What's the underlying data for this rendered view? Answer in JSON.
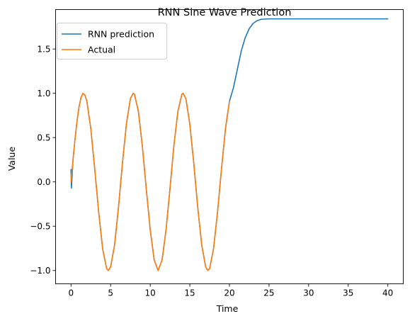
{
  "chart_data": {
    "type": "line",
    "title": "RNN Sine Wave Prediction",
    "xlabel": "Time",
    "ylabel": "Value",
    "xlim": [
      -1.95,
      41.95
    ],
    "ylim": [
      -1.15,
      1.945
    ],
    "xticks": [
      0,
      5,
      10,
      15,
      20,
      25,
      30,
      35,
      40
    ],
    "yticks": [
      -1.0,
      -0.5,
      0.0,
      0.5,
      1.0,
      1.5
    ],
    "ytick_labels": [
      "−1.0",
      "−0.5",
      "0.0",
      "0.5",
      "1.0",
      "1.5"
    ],
    "grid": false,
    "legend_position": "top-left",
    "series": [
      {
        "name": "RNN prediction",
        "color": "#1f77b4",
        "points": [
          [
            0.0,
            0.14
          ],
          [
            0.05,
            -0.07
          ],
          [
            0.25,
            0.25
          ],
          [
            0.5,
            0.48
          ],
          [
            0.75,
            0.68
          ],
          [
            1.0,
            0.84
          ],
          [
            1.25,
            0.95
          ],
          [
            1.5,
            1.0
          ],
          [
            1.75,
            0.98
          ],
          [
            2.0,
            0.91
          ],
          [
            2.5,
            0.6
          ],
          [
            3.0,
            0.14
          ],
          [
            3.5,
            -0.35
          ],
          [
            4.0,
            -0.76
          ],
          [
            4.5,
            -0.98
          ],
          [
            4.71,
            -1.0
          ],
          [
            5.0,
            -0.96
          ],
          [
            5.5,
            -0.71
          ],
          [
            6.0,
            -0.28
          ],
          [
            6.5,
            0.22
          ],
          [
            7.0,
            0.66
          ],
          [
            7.5,
            0.94
          ],
          [
            7.85,
            1.0
          ],
          [
            8.0,
            0.99
          ],
          [
            8.5,
            0.8
          ],
          [
            9.0,
            0.41
          ],
          [
            9.5,
            -0.08
          ],
          [
            10.0,
            -0.54
          ],
          [
            10.5,
            -0.88
          ],
          [
            11.0,
            -1.0
          ],
          [
            11.5,
            -0.88
          ],
          [
            12.0,
            -0.54
          ],
          [
            12.5,
            -0.07
          ],
          [
            13.0,
            0.42
          ],
          [
            13.5,
            0.8
          ],
          [
            14.0,
            0.99
          ],
          [
            14.14,
            1.0
          ],
          [
            14.5,
            0.94
          ],
          [
            15.0,
            0.65
          ],
          [
            15.5,
            0.21
          ],
          [
            16.0,
            -0.29
          ],
          [
            16.5,
            -0.71
          ],
          [
            17.0,
            -0.96
          ],
          [
            17.28,
            -1.0
          ],
          [
            17.5,
            -0.98
          ],
          [
            18.0,
            -0.75
          ],
          [
            18.5,
            -0.34
          ],
          [
            19.0,
            0.15
          ],
          [
            19.5,
            0.6
          ],
          [
            20.0,
            0.91
          ],
          [
            20.5,
            1.06
          ],
          [
            21.0,
            1.27
          ],
          [
            21.5,
            1.48
          ],
          [
            22.0,
            1.63
          ],
          [
            22.5,
            1.73
          ],
          [
            23.0,
            1.79
          ],
          [
            23.5,
            1.82
          ],
          [
            24.0,
            1.835
          ],
          [
            25.0,
            1.84
          ],
          [
            30.0,
            1.84
          ],
          [
            35.0,
            1.84
          ],
          [
            40.0,
            1.84
          ]
        ]
      },
      {
        "name": "Actual",
        "color": "#ff7f0e",
        "points": [
          [
            0.0,
            0.0
          ],
          [
            0.25,
            0.25
          ],
          [
            0.5,
            0.48
          ],
          [
            0.75,
            0.68
          ],
          [
            1.0,
            0.84
          ],
          [
            1.25,
            0.95
          ],
          [
            1.5,
            1.0
          ],
          [
            1.75,
            0.98
          ],
          [
            2.0,
            0.91
          ],
          [
            2.5,
            0.6
          ],
          [
            3.0,
            0.14
          ],
          [
            3.5,
            -0.35
          ],
          [
            4.0,
            -0.76
          ],
          [
            4.5,
            -0.98
          ],
          [
            4.71,
            -1.0
          ],
          [
            5.0,
            -0.96
          ],
          [
            5.5,
            -0.71
          ],
          [
            6.0,
            -0.28
          ],
          [
            6.5,
            0.22
          ],
          [
            7.0,
            0.66
          ],
          [
            7.5,
            0.94
          ],
          [
            7.85,
            1.0
          ],
          [
            8.0,
            0.99
          ],
          [
            8.5,
            0.8
          ],
          [
            9.0,
            0.41
          ],
          [
            9.5,
            -0.08
          ],
          [
            10.0,
            -0.54
          ],
          [
            10.5,
            -0.88
          ],
          [
            11.0,
            -1.0
          ],
          [
            11.5,
            -0.88
          ],
          [
            12.0,
            -0.54
          ],
          [
            12.5,
            -0.07
          ],
          [
            13.0,
            0.42
          ],
          [
            13.5,
            0.8
          ],
          [
            14.0,
            0.99
          ],
          [
            14.14,
            1.0
          ],
          [
            14.5,
            0.94
          ],
          [
            15.0,
            0.65
          ],
          [
            15.5,
            0.21
          ],
          [
            16.0,
            -0.29
          ],
          [
            16.5,
            -0.71
          ],
          [
            17.0,
            -0.96
          ],
          [
            17.28,
            -1.0
          ],
          [
            17.5,
            -0.98
          ],
          [
            18.0,
            -0.75
          ],
          [
            18.5,
            -0.34
          ],
          [
            19.0,
            0.15
          ],
          [
            19.5,
            0.6
          ],
          [
            20.0,
            0.91
          ]
        ]
      }
    ]
  }
}
